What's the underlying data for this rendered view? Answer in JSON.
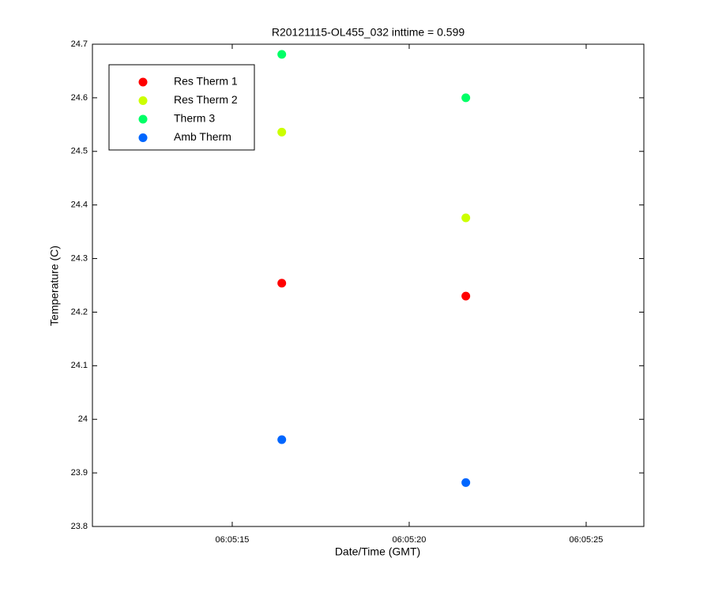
{
  "chart_data": {
    "type": "scatter",
    "title": "R20121115-OL455_032 inttime = 0.599",
    "x_label": "Date/Time (GMT)",
    "y_label": "Temperature (C)",
    "x": [
      21916.4,
      21921.6
    ],
    "series": [
      {
        "name": "Res Therm 1",
        "color": "#ff0000",
        "values": [
          24.254,
          24.23
        ]
      },
      {
        "name": "Res Therm 2",
        "color": "#ccff00",
        "values": [
          24.536,
          24.376
        ]
      },
      {
        "name": "Therm 3",
        "color": "#00ff66",
        "values": [
          24.681,
          24.6
        ]
      },
      {
        "name": "Amb Therm",
        "color": "#0066ff",
        "values": [
          23.962,
          23.882
        ]
      }
    ],
    "xlim": [
      21911.05,
      21926.63
    ],
    "xticks": [
      {
        "value": 21915,
        "label": "06:05:15"
      },
      {
        "value": 21920,
        "label": "06:05:20"
      },
      {
        "value": 21925,
        "label": "06:05:25"
      }
    ],
    "ylim": [
      23.8,
      24.7
    ],
    "yticks": [
      23.8,
      23.9,
      24,
      24.1,
      24.2,
      24.3,
      24.4,
      24.5,
      24.6,
      24.7
    ],
    "grid": false,
    "legend": "northwest"
  }
}
